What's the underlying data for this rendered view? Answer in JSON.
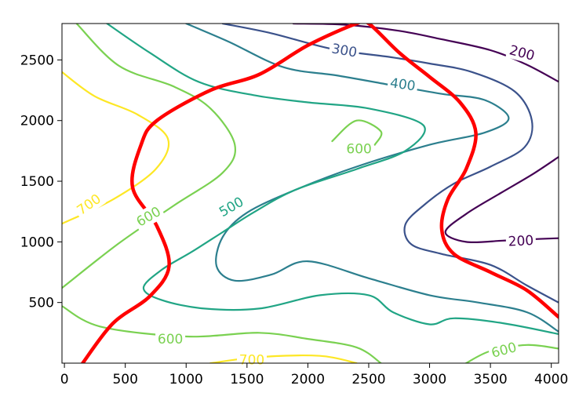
{
  "chart_data": {
    "type": "contour",
    "title": "",
    "xlabel": "",
    "ylabel": "",
    "xlim": [
      -20,
      4060
    ],
    "ylim": [
      0,
      2800
    ],
    "grid": false,
    "x_ticks": [
      {
        "value": 0,
        "label": "0"
      },
      {
        "value": 500,
        "label": "500"
      },
      {
        "value": 1000,
        "label": "1000"
      },
      {
        "value": 1500,
        "label": "1500"
      },
      {
        "value": 2000,
        "label": "2000"
      },
      {
        "value": 2500,
        "label": "2500"
      },
      {
        "value": 3000,
        "label": "3000"
      },
      {
        "value": 3500,
        "label": "3500"
      },
      {
        "value": 4000,
        "label": "4000"
      }
    ],
    "y_ticks": [
      {
        "value": 500,
        "label": "500"
      },
      {
        "value": 1000,
        "label": "1000"
      },
      {
        "value": 1500,
        "label": "1500"
      },
      {
        "value": 2000,
        "label": "2000"
      },
      {
        "value": 2500,
        "label": "2500"
      }
    ],
    "colors": {
      "level_200": "#440154",
      "level_300": "#3b528b",
      "level_400": "#2c7f8e",
      "level_500": "#21a585",
      "level_600": "#7ad151",
      "level_700": "#fde725",
      "path": "#ff0000"
    },
    "contours": [
      {
        "level": 200,
        "color_key": "level_200",
        "segments": [
          [
            [
              1880,
              2800
            ],
            [
              2300,
              2790
            ],
            [
              2750,
              2740
            ],
            [
              3100,
              2670
            ],
            [
              3500,
              2580
            ],
            [
              3800,
              2460
            ],
            [
              4060,
              2320
            ]
          ],
          [
            [
              4060,
              1700
            ],
            [
              3850,
              1560
            ],
            [
              3580,
              1400
            ],
            [
              3300,
              1230
            ],
            [
              3130,
              1080
            ],
            [
              3300,
              1000
            ],
            [
              3600,
              1010
            ],
            [
              3800,
              1020
            ],
            [
              4060,
              1030
            ]
          ]
        ]
      },
      {
        "level": 300,
        "color_key": "level_300",
        "segments": [
          [
            [
              1300,
              2800
            ],
            [
              1700,
              2720
            ],
            [
              2200,
              2590
            ],
            [
              2700,
              2520
            ],
            [
              3000,
              2470
            ],
            [
              3350,
              2400
            ],
            [
              3700,
              2240
            ],
            [
              3840,
              2000
            ],
            [
              3780,
              1780
            ],
            [
              3500,
              1620
            ],
            [
              3200,
              1480
            ],
            [
              2950,
              1300
            ],
            [
              2800,
              1140
            ],
            [
              2850,
              980
            ],
            [
              3100,
              900
            ],
            [
              3500,
              810
            ],
            [
              3800,
              640
            ],
            [
              4060,
              500
            ]
          ]
        ]
      },
      {
        "level": 400,
        "color_key": "level_400",
        "segments": [
          [
            [
              1000,
              2800
            ],
            [
              1350,
              2650
            ],
            [
              1800,
              2440
            ],
            [
              2250,
              2370
            ],
            [
              2700,
              2290
            ],
            [
              3100,
              2220
            ],
            [
              3450,
              2170
            ],
            [
              3650,
              2020
            ],
            [
              3450,
              1900
            ],
            [
              3000,
              1800
            ],
            [
              2400,
              1620
            ],
            [
              1900,
              1430
            ],
            [
              1500,
              1240
            ],
            [
              1300,
              1040
            ],
            [
              1250,
              800
            ],
            [
              1400,
              680
            ],
            [
              1700,
              730
            ],
            [
              2000,
              840
            ],
            [
              2500,
              700
            ],
            [
              3000,
              560
            ],
            [
              3400,
              500
            ],
            [
              3800,
              420
            ],
            [
              4060,
              260
            ]
          ]
        ]
      },
      {
        "level": 500,
        "color_key": "level_500",
        "segments": [
          [
            [
              350,
              2800
            ],
            [
              700,
              2560
            ],
            [
              1100,
              2320
            ],
            [
              1550,
              2210
            ],
            [
              2000,
              2150
            ],
            [
              2500,
              2100
            ],
            [
              2950,
              1960
            ],
            [
              2800,
              1750
            ],
            [
              2400,
              1600
            ],
            [
              1900,
              1430
            ],
            [
              1550,
              1240
            ],
            [
              1300,
              1080
            ],
            [
              1050,
              920
            ],
            [
              800,
              770
            ],
            [
              650,
              620
            ],
            [
              800,
              520
            ],
            [
              1150,
              450
            ],
            [
              1600,
              450
            ],
            [
              2100,
              560
            ],
            [
              2500,
              560
            ],
            [
              2700,
              420
            ],
            [
              3000,
              320
            ],
            [
              3200,
              370
            ],
            [
              3600,
              330
            ],
            [
              4060,
              240
            ]
          ]
        ]
      },
      {
        "level": 600,
        "color_key": "level_600",
        "segments": [
          [
            [
              100,
              2800
            ],
            [
              450,
              2450
            ],
            [
              900,
              2280
            ],
            [
              1200,
              2100
            ],
            [
              1400,
              1800
            ],
            [
              1300,
              1570
            ],
            [
              900,
              1300
            ],
            [
              450,
              990
            ],
            [
              -20,
              620
            ]
          ],
          [
            [
              -20,
              470
            ],
            [
              300,
              300
            ],
            [
              1000,
              220
            ],
            [
              1600,
              250
            ],
            [
              2000,
              200
            ],
            [
              2400,
              130
            ],
            [
              2600,
              0
            ]
          ],
          [
            [
              2200,
              1830
            ],
            [
              2400,
              2000
            ],
            [
              2600,
              1910
            ],
            [
              2550,
              1800
            ]
          ],
          [
            [
              3300,
              0
            ],
            [
              3500,
              100
            ],
            [
              3800,
              150
            ],
            [
              4060,
              120
            ]
          ]
        ]
      },
      {
        "level": 700,
        "color_key": "level_700",
        "segments": [
          [
            [
              -20,
              2400
            ],
            [
              250,
              2200
            ],
            [
              600,
              2050
            ],
            [
              850,
              1850
            ],
            [
              750,
              1600
            ],
            [
              400,
              1350
            ],
            [
              -20,
              1150
            ]
          ],
          [
            [
              1200,
              0
            ],
            [
              1600,
              50
            ],
            [
              2100,
              60
            ],
            [
              2400,
              0
            ]
          ]
        ]
      }
    ],
    "contour_labels": [
      {
        "text": "200",
        "level": 200,
        "x": 3760,
        "y": 2560,
        "angle": 15
      },
      {
        "text": "200",
        "level": 200,
        "x": 3750,
        "y": 1010,
        "angle": -3
      },
      {
        "text": "300",
        "level": 300,
        "x": 2300,
        "y": 2580,
        "angle": 10
      },
      {
        "text": "400",
        "level": 400,
        "x": 2780,
        "y": 2300,
        "angle": 8
      },
      {
        "text": "500",
        "level": 500,
        "x": 1370,
        "y": 1290,
        "angle": -30
      },
      {
        "text": "600",
        "level": 600,
        "x": 690,
        "y": 1210,
        "angle": -30
      },
      {
        "text": "600",
        "level": 600,
        "x": 2420,
        "y": 1770,
        "angle": 0
      },
      {
        "text": "600",
        "level": 600,
        "x": 870,
        "y": 200,
        "angle": 0
      },
      {
        "text": "600",
        "level": 600,
        "x": 3610,
        "y": 110,
        "angle": -15
      },
      {
        "text": "700",
        "level": 700,
        "x": 200,
        "y": 1310,
        "angle": -35
      },
      {
        "text": "700",
        "level": 700,
        "x": 1540,
        "y": 30,
        "angle": 0
      }
    ],
    "path": [
      [
        150,
        0
      ],
      [
        400,
        330
      ],
      [
        700,
        550
      ],
      [
        860,
        800
      ],
      [
        760,
        1130
      ],
      [
        560,
        1450
      ],
      [
        630,
        1800
      ],
      [
        760,
        2000
      ],
      [
        1200,
        2250
      ],
      [
        1600,
        2380
      ],
      [
        2000,
        2620
      ],
      [
        2400,
        2800
      ],
      [
        2500,
        2800
      ],
      [
        2750,
        2560
      ],
      [
        3000,
        2360
      ],
      [
        3250,
        2150
      ],
      [
        3380,
        1900
      ],
      [
        3300,
        1600
      ],
      [
        3150,
        1350
      ],
      [
        3100,
        1100
      ],
      [
        3200,
        900
      ],
      [
        3500,
        750
      ],
      [
        3800,
        600
      ],
      [
        4060,
        380
      ]
    ]
  }
}
